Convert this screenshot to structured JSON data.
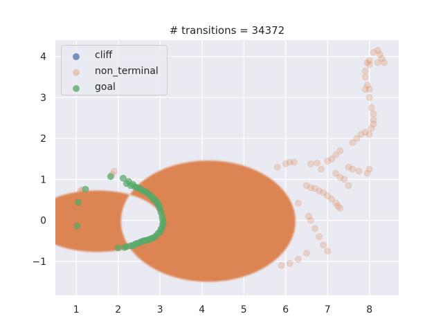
{
  "chart_data": {
    "type": "scatter",
    "title": "# transitions = 34372",
    "xlabel": "",
    "ylabel": "",
    "xlim": [
      0.5,
      8.7
    ],
    "ylim": [
      -1.83,
      4.4
    ],
    "xticks": [
      1,
      2,
      3,
      4,
      5,
      6,
      7,
      8
    ],
    "yticks": [
      -1,
      0,
      1,
      2,
      3,
      4
    ],
    "xtick_labels": [
      "1",
      "2",
      "3",
      "4",
      "5",
      "6",
      "7",
      "8"
    ],
    "ytick_labels": [
      "−1",
      "0",
      "1",
      "2",
      "3",
      "4"
    ],
    "grid": true,
    "legend_position": "top-left",
    "background_color": "#eaeaf2",
    "series": [
      {
        "name": "cliff",
        "color": "#4c72b0",
        "alpha": 0.7,
        "points": []
      },
      {
        "name": "non_terminal",
        "color": "#dd8452",
        "alpha": 0.25,
        "dense_region": "annular blob spanning x 1.7-6.2, y -1.5-1.45, inner edge x≈3.05 at y=0, outer edge x≈6.2",
        "points": [
          [
            0.85,
            0.05
          ],
          [
            0.9,
            -0.2
          ],
          [
            0.95,
            -0.15
          ],
          [
            0.88,
            -0.05
          ],
          [
            0.92,
            0.38
          ],
          [
            1.1,
            0.72
          ],
          [
            1.15,
            0.75
          ],
          [
            1.85,
            1.12
          ],
          [
            1.9,
            1.2
          ],
          [
            5.8,
            1.3
          ],
          [
            6.0,
            1.38
          ],
          [
            6.1,
            1.42
          ],
          [
            6.2,
            1.42
          ],
          [
            6.3,
            0.42
          ],
          [
            6.6,
            1.38
          ],
          [
            6.75,
            1.4
          ],
          [
            6.85,
            1.25
          ],
          [
            7.0,
            1.45
          ],
          [
            7.1,
            1.5
          ],
          [
            7.2,
            1.6
          ],
          [
            7.3,
            1.7
          ],
          [
            7.5,
            1.3
          ],
          [
            7.6,
            1.25
          ],
          [
            7.75,
            1.2
          ],
          [
            7.95,
            1.15
          ],
          [
            8.0,
            1.25
          ],
          [
            7.2,
            1.15
          ],
          [
            7.3,
            1.05
          ],
          [
            7.4,
            1.0
          ],
          [
            7.5,
            0.85
          ],
          [
            6.5,
            0.85
          ],
          [
            6.6,
            0.8
          ],
          [
            6.7,
            0.78
          ],
          [
            6.8,
            0.72
          ],
          [
            6.9,
            0.68
          ],
          [
            7.0,
            0.6
          ],
          [
            7.1,
            0.52
          ],
          [
            7.2,
            0.42
          ],
          [
            7.25,
            0.35
          ],
          [
            7.3,
            0.3
          ],
          [
            6.55,
            0.1
          ],
          [
            6.6,
            0.0
          ],
          [
            6.7,
            -0.2
          ],
          [
            6.8,
            -0.4
          ],
          [
            6.9,
            -0.6
          ],
          [
            7.0,
            -0.75
          ],
          [
            6.5,
            -0.8
          ],
          [
            6.3,
            -0.95
          ],
          [
            6.1,
            -1.05
          ],
          [
            5.9,
            -1.1
          ],
          [
            7.6,
            1.9
          ],
          [
            7.7,
            2.0
          ],
          [
            7.8,
            2.1
          ],
          [
            7.9,
            2.15
          ],
          [
            8.0,
            2.1
          ],
          [
            8.05,
            2.25
          ],
          [
            8.1,
            2.45
          ],
          [
            8.1,
            2.6
          ],
          [
            8.05,
            2.75
          ],
          [
            8.0,
            3.0
          ],
          [
            8.0,
            3.2
          ],
          [
            7.95,
            3.3
          ],
          [
            7.9,
            3.5
          ],
          [
            7.9,
            3.65
          ],
          [
            7.95,
            3.85
          ],
          [
            8.0,
            3.9
          ],
          [
            8.1,
            4.1
          ],
          [
            8.2,
            4.15
          ],
          [
            8.25,
            4.05
          ],
          [
            8.3,
            3.95
          ],
          [
            8.35,
            3.85
          ],
          [
            8.2,
            3.85
          ],
          [
            8.0,
            3.8
          ],
          [
            7.9,
            3.2
          ],
          [
            8.1,
            2.35
          ]
        ]
      },
      {
        "name": "goal",
        "color": "#55a868",
        "alpha": 0.7,
        "points": [
          [
            1.05,
            0.44
          ],
          [
            1.02,
            -0.14
          ],
          [
            1.22,
            0.76
          ],
          [
            1.82,
            1.07
          ],
          [
            2.0,
            -0.67
          ],
          [
            2.2,
            -0.64
          ],
          [
            2.3,
            -0.62
          ],
          [
            2.12,
            1.03
          ],
          [
            2.2,
            0.9
          ],
          [
            2.3,
            0.85
          ],
          [
            2.4,
            0.82
          ],
          [
            2.5,
            0.78
          ],
          [
            2.6,
            0.72
          ],
          [
            2.7,
            0.66
          ],
          [
            2.8,
            0.58
          ],
          [
            2.88,
            0.5
          ],
          [
            2.95,
            0.4
          ],
          [
            3.0,
            0.28
          ],
          [
            3.05,
            0.1
          ],
          [
            3.08,
            -0.05
          ],
          [
            3.05,
            -0.18
          ],
          [
            3.0,
            -0.28
          ],
          [
            2.9,
            -0.38
          ],
          [
            2.8,
            -0.44
          ],
          [
            2.7,
            -0.48
          ],
          [
            2.6,
            -0.5
          ],
          [
            2.5,
            -0.55
          ],
          [
            2.4,
            -0.58
          ],
          [
            2.35,
            -0.62
          ],
          [
            2.25,
            0.95
          ],
          [
            2.35,
            0.88
          ],
          [
            2.45,
            0.8
          ],
          [
            2.55,
            0.75
          ],
          [
            2.65,
            0.7
          ],
          [
            2.75,
            0.62
          ],
          [
            2.85,
            0.52
          ],
          [
            2.92,
            0.45
          ],
          [
            2.98,
            0.35
          ],
          [
            3.02,
            0.2
          ],
          [
            3.06,
            0.02
          ],
          [
            3.06,
            -0.1
          ],
          [
            3.02,
            -0.22
          ],
          [
            2.95,
            -0.32
          ],
          [
            2.85,
            -0.42
          ],
          [
            2.75,
            -0.46
          ],
          [
            2.65,
            -0.49
          ],
          [
            2.55,
            -0.52
          ],
          [
            2.45,
            -0.56
          ],
          [
            2.15,
            -0.66
          ]
        ]
      }
    ]
  }
}
